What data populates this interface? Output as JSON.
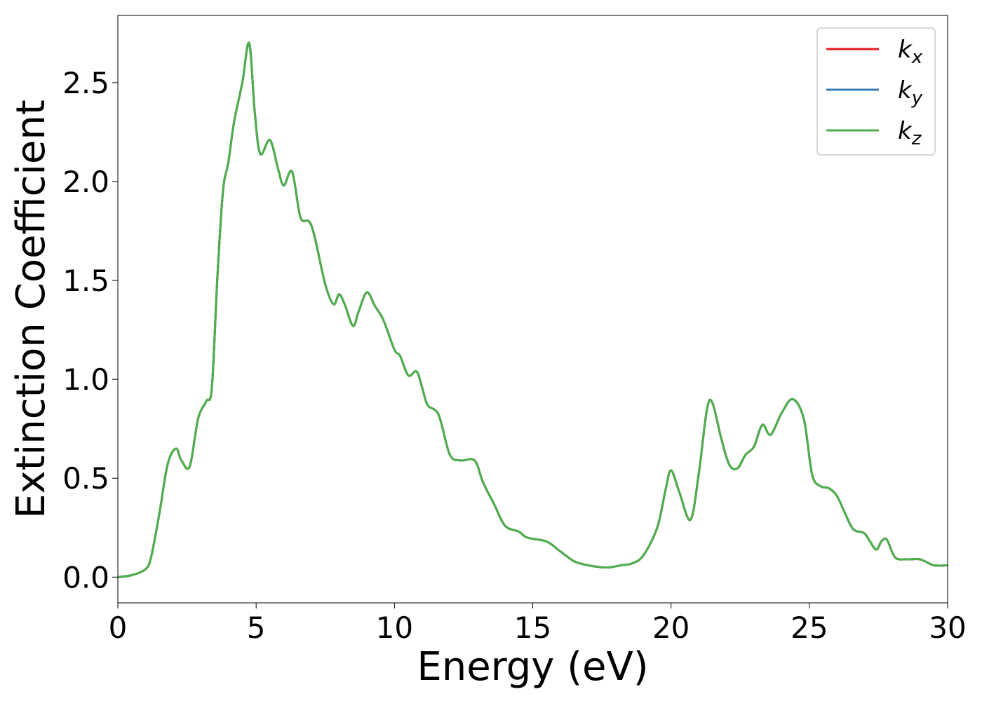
{
  "chart_data": {
    "type": "line",
    "xlabel": "Energy (eV)",
    "ylabel": "Extinction Coefficient",
    "xlim": [
      0,
      30
    ],
    "ylim": [
      -0.13,
      2.84
    ],
    "xticks": [
      "0",
      "5",
      "10",
      "15",
      "20",
      "25",
      "30"
    ],
    "yticks": [
      "0.0",
      "0.5",
      "1.0",
      "1.5",
      "2.0",
      "2.5"
    ],
    "grid": false,
    "legend_position": "top-right",
    "series": [
      {
        "name": "k",
        "subscript": "x",
        "color": "#e41a1c"
      },
      {
        "name": "k",
        "subscript": "y",
        "color": "#377eb8"
      },
      {
        "name": "k",
        "subscript": "z",
        "color": "#4daf4a"
      }
    ],
    "x": [
      0,
      0.5,
      1.0,
      1.2,
      1.5,
      1.8,
      2.1,
      2.3,
      2.6,
      2.9,
      3.2,
      3.4,
      3.6,
      3.8,
      4.0,
      4.2,
      4.5,
      4.75,
      4.95,
      5.15,
      5.5,
      5.8,
      6.0,
      6.3,
      6.6,
      6.9,
      7.1,
      7.5,
      7.8,
      8.0,
      8.2,
      8.5,
      8.7,
      9.0,
      9.3,
      9.6,
      10.0,
      10.2,
      10.5,
      10.8,
      11.0,
      11.2,
      11.6,
      12.0,
      12.4,
      12.9,
      13.2,
      13.6,
      14.0,
      14.5,
      14.8,
      15.5,
      16.0,
      16.5,
      17.0,
      17.5,
      17.8,
      18.2,
      18.6,
      19.0,
      19.5,
      19.8,
      20.0,
      20.3,
      20.7,
      21.0,
      21.3,
      21.5,
      21.8,
      22.1,
      22.4,
      22.7,
      23.0,
      23.3,
      23.6,
      24.0,
      24.4,
      24.8,
      25.1,
      25.4,
      25.7,
      26.0,
      26.3,
      26.6,
      27.0,
      27.4,
      27.6,
      27.8,
      28.1,
      28.5,
      29.0,
      29.5,
      30.0
    ],
    "y": [
      0.0,
      0.01,
      0.04,
      0.1,
      0.32,
      0.57,
      0.65,
      0.59,
      0.56,
      0.8,
      0.89,
      0.96,
      1.52,
      1.95,
      2.1,
      2.3,
      2.5,
      2.7,
      2.35,
      2.14,
      2.21,
      2.06,
      1.98,
      2.05,
      1.82,
      1.8,
      1.73,
      1.48,
      1.38,
      1.43,
      1.38,
      1.27,
      1.34,
      1.44,
      1.37,
      1.3,
      1.15,
      1.12,
      1.02,
      1.04,
      0.96,
      0.87,
      0.82,
      0.62,
      0.59,
      0.59,
      0.48,
      0.37,
      0.26,
      0.23,
      0.2,
      0.18,
      0.13,
      0.08,
      0.06,
      0.05,
      0.05,
      0.06,
      0.07,
      0.11,
      0.25,
      0.44,
      0.54,
      0.43,
      0.29,
      0.52,
      0.85,
      0.88,
      0.71,
      0.57,
      0.55,
      0.62,
      0.66,
      0.77,
      0.72,
      0.83,
      0.9,
      0.8,
      0.52,
      0.46,
      0.45,
      0.41,
      0.32,
      0.24,
      0.22,
      0.14,
      0.18,
      0.19,
      0.1,
      0.09,
      0.09,
      0.06,
      0.06
    ]
  }
}
